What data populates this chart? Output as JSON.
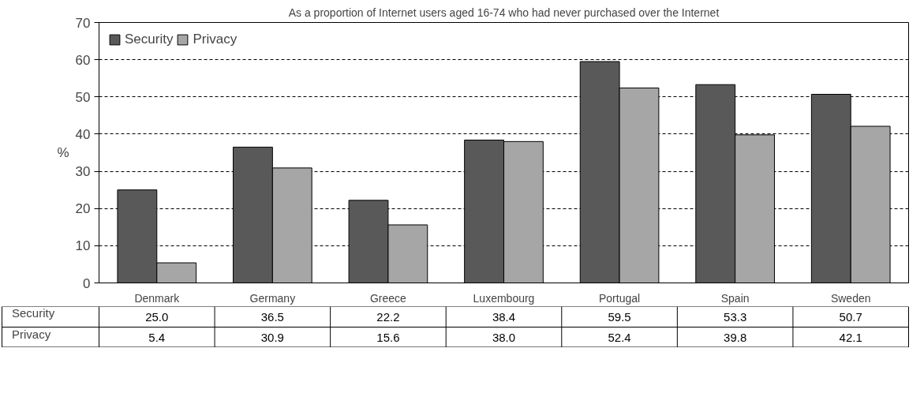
{
  "chart_data": {
    "type": "bar",
    "title": "As a proportion of Internet users aged 16-74 who had never purchased over the Internet",
    "ylabel": "%",
    "categories": [
      "Denmark",
      "Germany",
      "Greece",
      "Luxembourg",
      "Portugal",
      "Spain",
      "Sweden"
    ],
    "series": [
      {
        "name": "Security",
        "color": "#595959",
        "values": [
          25.0,
          36.5,
          22.2,
          38.4,
          59.5,
          53.3,
          50.7
        ],
        "value_labels": [
          "25.0",
          "36.5",
          "22.2",
          "38.4",
          "59.5",
          "53.3",
          "50.7"
        ]
      },
      {
        "name": "Privacy",
        "color": "#a6a6a6",
        "values": [
          5.4,
          30.9,
          15.6,
          38.0,
          52.4,
          39.8,
          42.1
        ],
        "value_labels": [
          "5.4",
          "30.9",
          "15.6",
          "38.0",
          "52.4",
          "39.8",
          "42.1"
        ]
      }
    ],
    "ylim": [
      0,
      70
    ],
    "yticks": [
      0,
      10,
      20,
      30,
      40,
      50,
      60,
      70
    ],
    "grid": "y",
    "legend": "top left"
  }
}
